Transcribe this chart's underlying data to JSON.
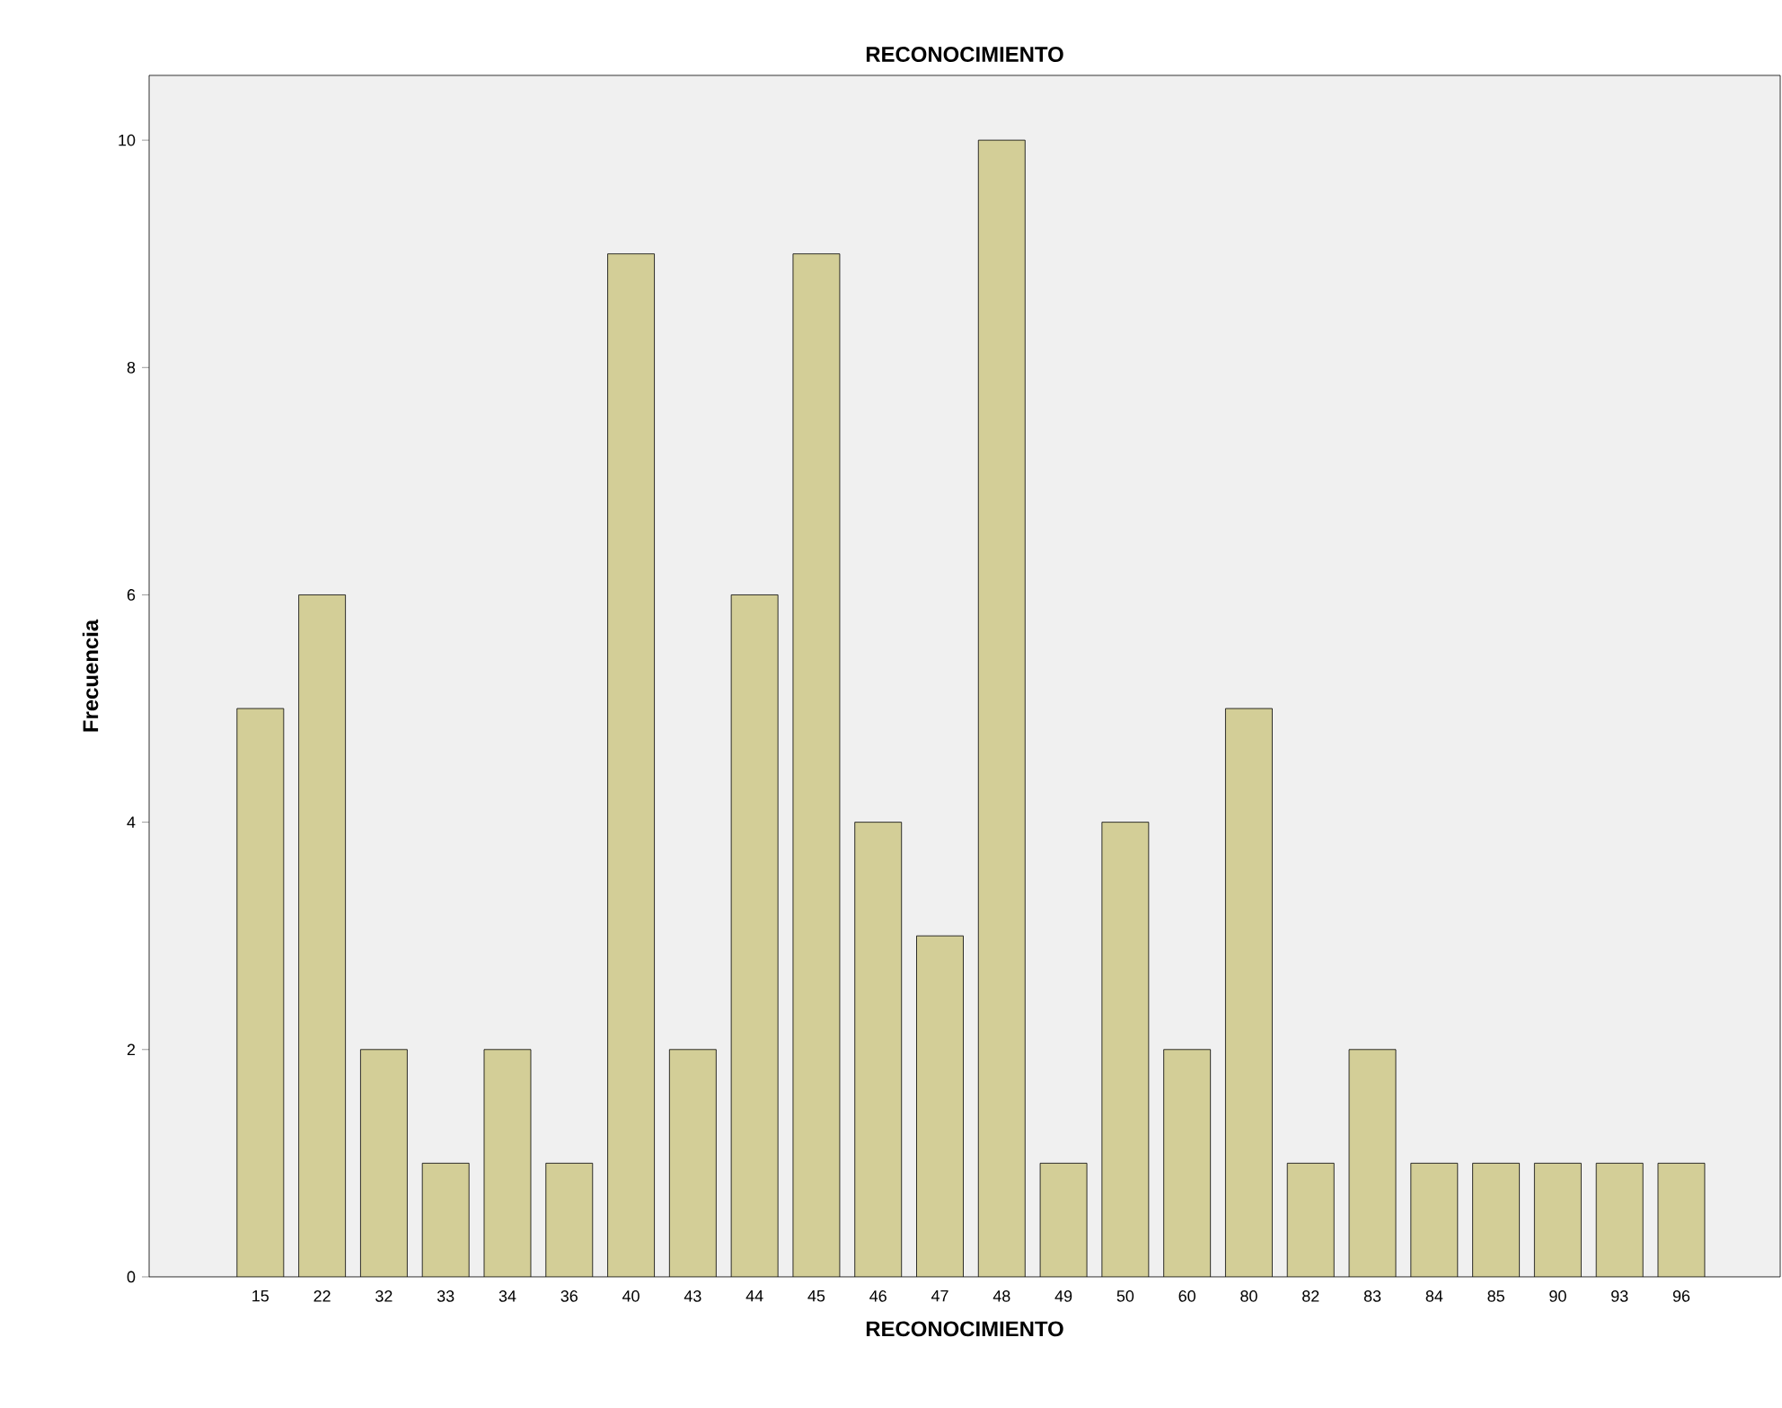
{
  "chart_data": {
    "type": "bar",
    "title": "RECONOCIMIENTO",
    "xlabel": "RECONOCIMIENTO",
    "ylabel": "Frecuencia",
    "categories": [
      "15",
      "22",
      "32",
      "33",
      "34",
      "36",
      "40",
      "43",
      "44",
      "45",
      "46",
      "47",
      "48",
      "49",
      "50",
      "60",
      "80",
      "82",
      "83",
      "84",
      "85",
      "90",
      "93",
      "96"
    ],
    "values": [
      5,
      6,
      2,
      1,
      2,
      1,
      9,
      2,
      6,
      9,
      4,
      3,
      10,
      1,
      4,
      2,
      5,
      1,
      2,
      1,
      1,
      1,
      1,
      1
    ],
    "color": "#d3ce97",
    "ylim": [
      0,
      10.57
    ],
    "yticks": [
      0,
      2,
      4,
      6,
      8,
      10
    ],
    "grid": false
  }
}
